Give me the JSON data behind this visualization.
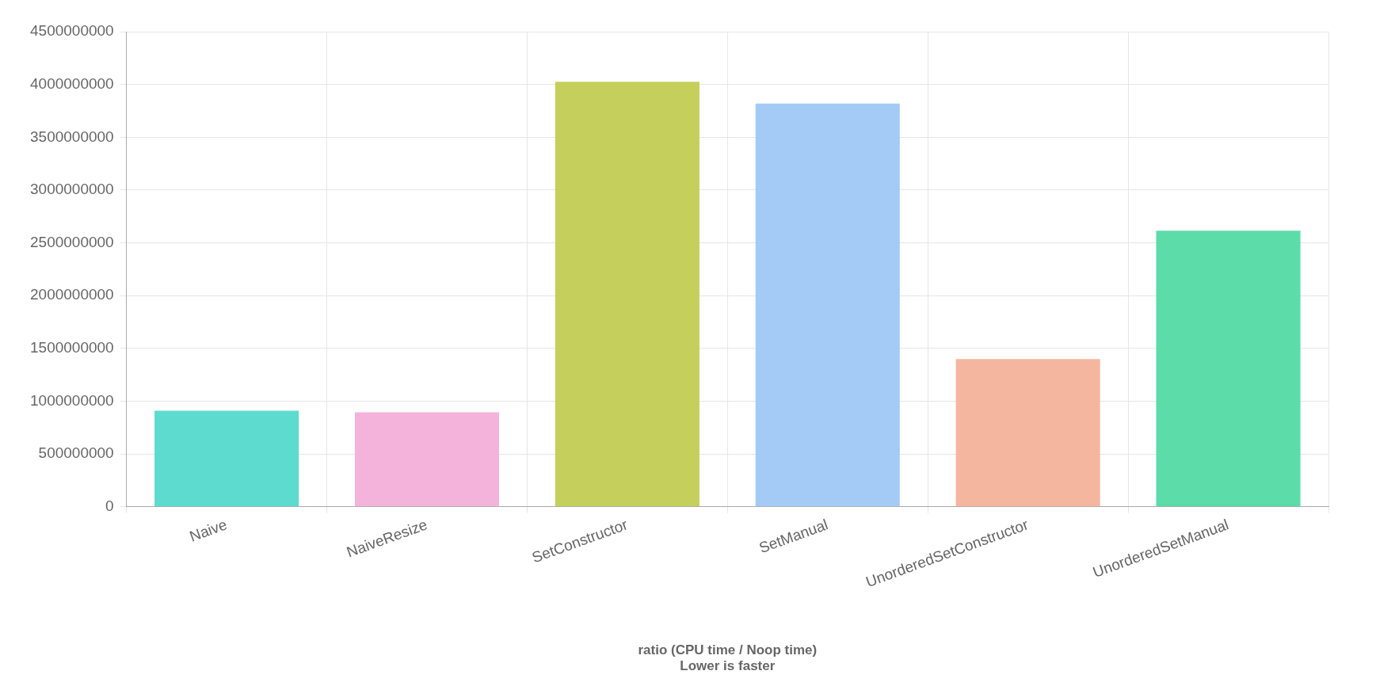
{
  "chart_data": {
    "type": "bar",
    "xlabel": "ratio (CPU time / Noop time)\nLower is faster",
    "categories": [
      "Naive",
      "NaiveResize",
      "SetConstructor",
      "SetManual",
      "UnorderedSetConstructor",
      "UnorderedSetManual"
    ],
    "values": [
      910000000,
      895000000,
      4025000000,
      3820000000,
      1400000000,
      2615000000
    ],
    "colors": [
      "#5ddbcf",
      "#f4b3da",
      "#c5cf5c",
      "#a3cbf5",
      "#f5b6a0",
      "#5cdca8"
    ],
    "ylim": [
      0,
      4500000000
    ],
    "yticks": [
      0,
      500000000,
      1000000000,
      1500000000,
      2000000000,
      2500000000,
      3000000000,
      3500000000,
      4000000000,
      4500000000
    ],
    "grid": true,
    "legend": false
  }
}
